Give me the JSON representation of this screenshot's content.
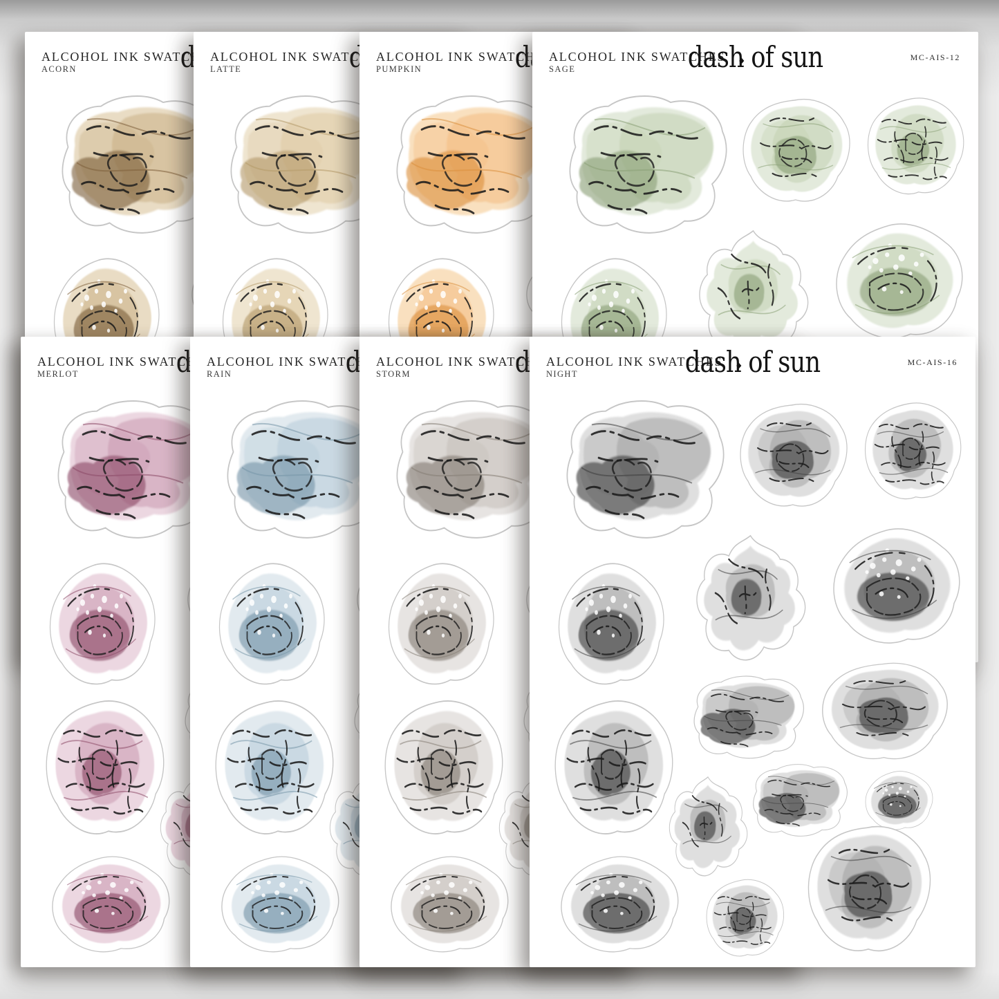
{
  "product": {
    "series_title": "ALCOHOL INK SWATCHES",
    "brand": "dash of sun"
  },
  "sheets": [
    {
      "name": "ACORN",
      "ink": {
        "wash": "#e7d9bf",
        "mid": "#c8ac82",
        "dark": "#7d5f3a"
      }
    },
    {
      "name": "LATTE",
      "ink": {
        "wash": "#eee3cc",
        "mid": "#dcc7a0",
        "dark": "#b49a6a"
      }
    },
    {
      "name": "PUMPKIN",
      "ink": {
        "wash": "#f8ddba",
        "mid": "#f2b97c",
        "dark": "#db8f3e"
      }
    },
    {
      "name": "SAGE",
      "code": "MC-AIS-12",
      "ink": {
        "wash": "#e1e8d9",
        "mid": "#c0cfae",
        "dark": "#8ba077"
      }
    },
    {
      "name": "MERLOT",
      "ink": {
        "wash": "#ead4de",
        "mid": "#c795ac",
        "dark": "#8d4a68"
      }
    },
    {
      "name": "RAIN",
      "ink": {
        "wash": "#dfe8ee",
        "mid": "#b4c9d6",
        "dark": "#7695a8"
      }
    },
    {
      "name": "STORM",
      "ink": {
        "wash": "#e5e2df",
        "mid": "#c2bcb6",
        "dark": "#857d75"
      }
    },
    {
      "name": "NIGHT",
      "code": "MC-AIS-16",
      "ink": {
        "wash": "#dcdcdc",
        "mid": "#a0a0a0",
        "dark": "#3d3d3d"
      }
    }
  ]
}
